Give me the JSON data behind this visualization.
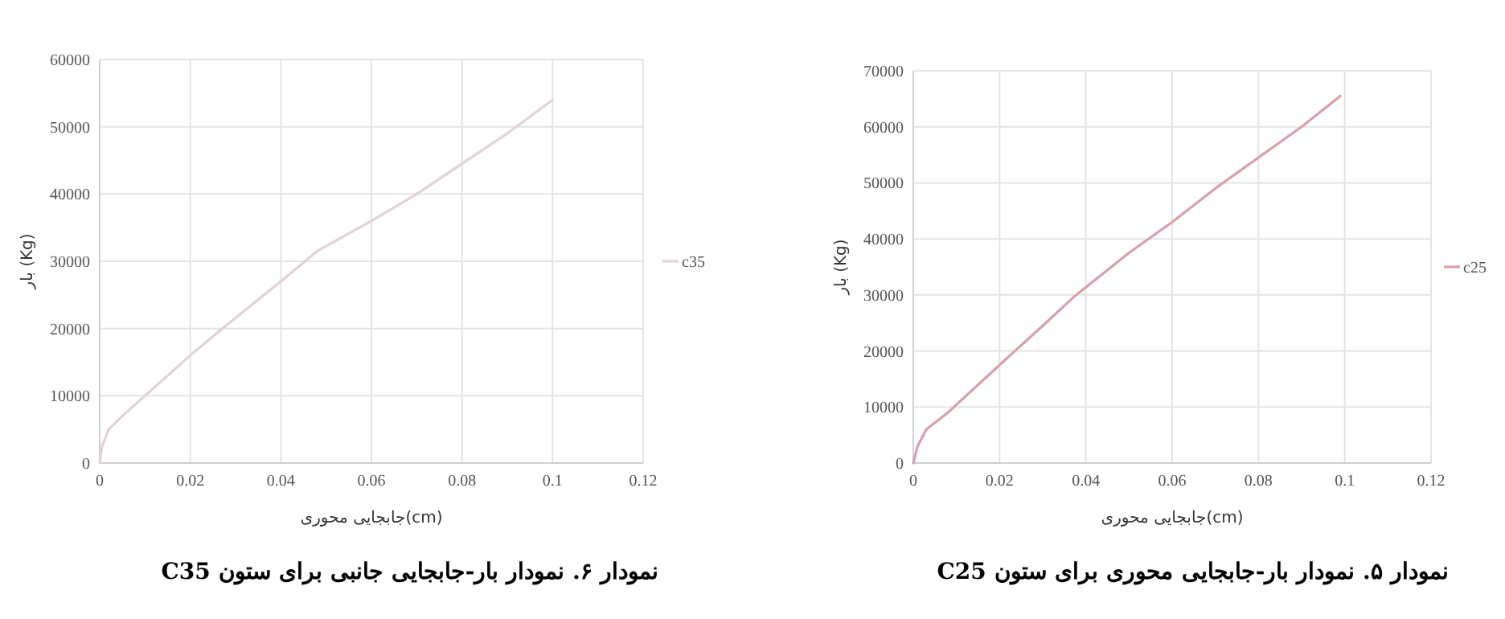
{
  "chart_data": [
    {
      "type": "line",
      "xlabel": "جابجایی محوری(cm)",
      "ylabel": "بار (Kg)",
      "x": [
        0,
        0.0005,
        0.002,
        0.005,
        0.01,
        0.02,
        0.028,
        0.04,
        0.048,
        0.06,
        0.07,
        0.08,
        0.09,
        0.1
      ],
      "series": [
        {
          "name": "c35",
          "color": "#e2d2d2",
          "values": [
            0,
            2500,
            5000,
            7000,
            10000,
            16000,
            20500,
            27000,
            31500,
            36000,
            40000,
            44500,
            49000,
            54000
          ]
        }
      ],
      "xlim": [
        0,
        0.12
      ],
      "xticks": [
        0,
        0.02,
        0.04,
        0.06,
        0.08,
        0.1,
        0.12
      ],
      "ylim": [
        0,
        60000
      ],
      "yticks": [
        0,
        10000,
        20000,
        30000,
        40000,
        50000,
        60000
      ],
      "grid": true,
      "legend": "right",
      "marker": "none",
      "annotations": [
        "نمودار ۶. نمودار بار-جابجایی جانبی برای ستون C35"
      ]
    },
    {
      "type": "line",
      "xlabel": "جابجایی محوری(cm)",
      "ylabel": "بار (Kg)",
      "x": [
        0,
        0.001,
        0.003,
        0.008,
        0.02,
        0.03,
        0.037,
        0.05,
        0.06,
        0.07,
        0.08,
        0.09,
        0.099
      ],
      "series": [
        {
          "name": "c25",
          "color": "#d8a0aa",
          "values": [
            0,
            3000,
            6000,
            9000,
            17500,
            24500,
            29500,
            37500,
            43000,
            49000,
            54500,
            60000,
            65500
          ]
        }
      ],
      "xlim": [
        0,
        0.12
      ],
      "xticks": [
        0,
        0.02,
        0.04,
        0.06,
        0.08,
        0.1,
        0.12
      ],
      "ylim": [
        0,
        70000
      ],
      "yticks": [
        0,
        10000,
        20000,
        30000,
        40000,
        50000,
        60000,
        70000
      ],
      "grid": true,
      "legend": "right",
      "marker": "none",
      "annotations": [
        "نمودار ۵. نمودار بار-جابجایی محوری برای ستون C25"
      ]
    }
  ]
}
